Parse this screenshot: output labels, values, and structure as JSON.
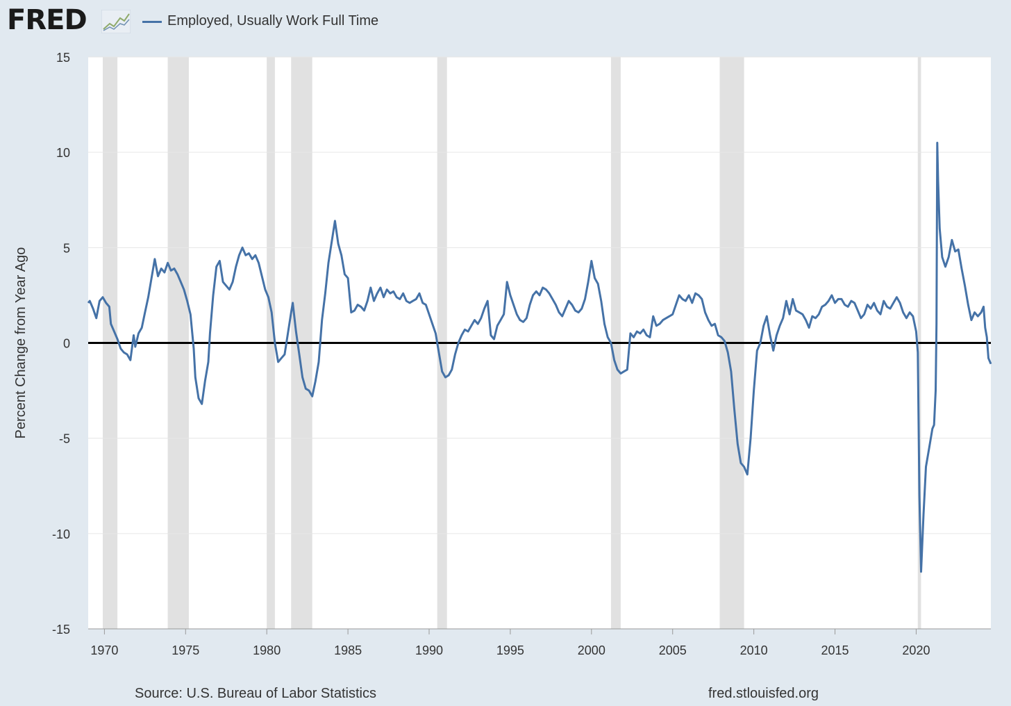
{
  "header": {
    "logo_text": "FRED",
    "legend_label": "Employed, Usually Work Full Time",
    "series_color": "#4572a7"
  },
  "footer": {
    "source": "Source: U.S. Bureau of Labor Statistics",
    "site": "fred.stlouisfed.org"
  },
  "chart_data": {
    "type": "line",
    "title": "",
    "ylabel": "Percent Change from Year Ago",
    "xlabel": "",
    "xlim": [
      1969.0,
      2024.6
    ],
    "ylim": [
      -15,
      15
    ],
    "x_ticks": [
      1970,
      1975,
      1980,
      1985,
      1990,
      1995,
      2000,
      2005,
      2010,
      2015,
      2020
    ],
    "y_ticks": [
      15,
      10,
      5,
      0,
      -5,
      -10,
      -15
    ],
    "grid": true,
    "zero_line": true,
    "recessions": [
      [
        1969.9,
        1970.8
      ],
      [
        1973.9,
        1975.2
      ],
      [
        1980.0,
        1980.5
      ],
      [
        1981.5,
        1982.8
      ],
      [
        1990.5,
        1991.1
      ],
      [
        2001.2,
        2001.8
      ],
      [
        2007.9,
        2009.4
      ],
      [
        2020.1,
        2020.3
      ]
    ],
    "series": [
      {
        "name": "Employed, Usually Work Full Time",
        "color": "#4572a7",
        "points": [
          [
            1969.0,
            2.1
          ],
          [
            1969.1,
            2.2
          ],
          [
            1969.3,
            1.8
          ],
          [
            1969.5,
            1.3
          ],
          [
            1969.7,
            2.2
          ],
          [
            1969.9,
            2.4
          ],
          [
            1970.1,
            2.1
          ],
          [
            1970.3,
            1.9
          ],
          [
            1970.4,
            1.0
          ],
          [
            1970.6,
            0.6
          ],
          [
            1970.8,
            0.2
          ],
          [
            1971.0,
            -0.3
          ],
          [
            1971.2,
            -0.5
          ],
          [
            1971.4,
            -0.6
          ],
          [
            1971.6,
            -0.9
          ],
          [
            1971.8,
            0.4
          ],
          [
            1971.9,
            -0.2
          ],
          [
            1972.1,
            0.5
          ],
          [
            1972.3,
            0.8
          ],
          [
            1972.5,
            1.6
          ],
          [
            1972.7,
            2.4
          ],
          [
            1972.9,
            3.4
          ],
          [
            1973.1,
            4.4
          ],
          [
            1973.3,
            3.5
          ],
          [
            1973.5,
            3.9
          ],
          [
            1973.7,
            3.7
          ],
          [
            1973.9,
            4.2
          ],
          [
            1974.1,
            3.8
          ],
          [
            1974.3,
            3.9
          ],
          [
            1974.5,
            3.6
          ],
          [
            1974.7,
            3.2
          ],
          [
            1974.9,
            2.8
          ],
          [
            1975.1,
            2.2
          ],
          [
            1975.3,
            1.5
          ],
          [
            1975.5,
            -0.3
          ],
          [
            1975.6,
            -1.8
          ],
          [
            1975.8,
            -2.9
          ],
          [
            1976.0,
            -3.2
          ],
          [
            1976.2,
            -2.0
          ],
          [
            1976.4,
            -1.0
          ],
          [
            1976.5,
            0.5
          ],
          [
            1976.7,
            2.5
          ],
          [
            1976.9,
            4.0
          ],
          [
            1977.1,
            4.3
          ],
          [
            1977.3,
            3.2
          ],
          [
            1977.5,
            3.0
          ],
          [
            1977.7,
            2.8
          ],
          [
            1977.9,
            3.2
          ],
          [
            1978.1,
            4.0
          ],
          [
            1978.3,
            4.6
          ],
          [
            1978.5,
            5.0
          ],
          [
            1978.7,
            4.6
          ],
          [
            1978.9,
            4.7
          ],
          [
            1979.1,
            4.4
          ],
          [
            1979.3,
            4.6
          ],
          [
            1979.5,
            4.2
          ],
          [
            1979.7,
            3.5
          ],
          [
            1979.9,
            2.8
          ],
          [
            1980.1,
            2.4
          ],
          [
            1980.3,
            1.6
          ],
          [
            1980.5,
            0.0
          ],
          [
            1980.7,
            -1.0
          ],
          [
            1980.9,
            -0.8
          ],
          [
            1981.1,
            -0.6
          ],
          [
            1981.3,
            0.5
          ],
          [
            1981.5,
            1.6
          ],
          [
            1981.6,
            2.1
          ],
          [
            1981.8,
            0.6
          ],
          [
            1982.0,
            -0.6
          ],
          [
            1982.2,
            -1.8
          ],
          [
            1982.4,
            -2.4
          ],
          [
            1982.6,
            -2.5
          ],
          [
            1982.8,
            -2.8
          ],
          [
            1983.0,
            -2.0
          ],
          [
            1983.2,
            -1.0
          ],
          [
            1983.4,
            1.2
          ],
          [
            1983.6,
            2.6
          ],
          [
            1983.8,
            4.2
          ],
          [
            1984.0,
            5.3
          ],
          [
            1984.2,
            6.4
          ],
          [
            1984.4,
            5.2
          ],
          [
            1984.6,
            4.6
          ],
          [
            1984.8,
            3.6
          ],
          [
            1985.0,
            3.4
          ],
          [
            1985.2,
            1.6
          ],
          [
            1985.4,
            1.7
          ],
          [
            1985.6,
            2.0
          ],
          [
            1985.8,
            1.9
          ],
          [
            1986.0,
            1.7
          ],
          [
            1986.2,
            2.2
          ],
          [
            1986.4,
            2.9
          ],
          [
            1986.6,
            2.2
          ],
          [
            1986.8,
            2.6
          ],
          [
            1987.0,
            2.9
          ],
          [
            1987.2,
            2.4
          ],
          [
            1987.4,
            2.8
          ],
          [
            1987.6,
            2.6
          ],
          [
            1987.8,
            2.7
          ],
          [
            1988.0,
            2.4
          ],
          [
            1988.2,
            2.3
          ],
          [
            1988.4,
            2.6
          ],
          [
            1988.6,
            2.2
          ],
          [
            1988.8,
            2.1
          ],
          [
            1989.0,
            2.2
          ],
          [
            1989.2,
            2.3
          ],
          [
            1989.4,
            2.6
          ],
          [
            1989.6,
            2.1
          ],
          [
            1989.8,
            2.0
          ],
          [
            1990.0,
            1.5
          ],
          [
            1990.2,
            1.0
          ],
          [
            1990.4,
            0.5
          ],
          [
            1990.6,
            -0.5
          ],
          [
            1990.8,
            -1.5
          ],
          [
            1991.0,
            -1.8
          ],
          [
            1991.2,
            -1.7
          ],
          [
            1991.4,
            -1.4
          ],
          [
            1991.6,
            -0.6
          ],
          [
            1991.8,
            0.0
          ],
          [
            1992.0,
            0.4
          ],
          [
            1992.2,
            0.7
          ],
          [
            1992.4,
            0.6
          ],
          [
            1992.6,
            0.9
          ],
          [
            1992.8,
            1.2
          ],
          [
            1993.0,
            1.0
          ],
          [
            1993.2,
            1.3
          ],
          [
            1993.4,
            1.8
          ],
          [
            1993.6,
            2.2
          ],
          [
            1993.8,
            0.4
          ],
          [
            1994.0,
            0.2
          ],
          [
            1994.2,
            0.9
          ],
          [
            1994.4,
            1.2
          ],
          [
            1994.6,
            1.5
          ],
          [
            1994.8,
            3.2
          ],
          [
            1995.0,
            2.5
          ],
          [
            1995.2,
            2.0
          ],
          [
            1995.4,
            1.5
          ],
          [
            1995.6,
            1.2
          ],
          [
            1995.8,
            1.1
          ],
          [
            1996.0,
            1.3
          ],
          [
            1996.2,
            2.0
          ],
          [
            1996.4,
            2.5
          ],
          [
            1996.6,
            2.7
          ],
          [
            1996.8,
            2.5
          ],
          [
            1997.0,
            2.9
          ],
          [
            1997.2,
            2.8
          ],
          [
            1997.4,
            2.6
          ],
          [
            1997.6,
            2.3
          ],
          [
            1997.8,
            2.0
          ],
          [
            1998.0,
            1.6
          ],
          [
            1998.2,
            1.4
          ],
          [
            1998.4,
            1.8
          ],
          [
            1998.6,
            2.2
          ],
          [
            1998.8,
            2.0
          ],
          [
            1999.0,
            1.7
          ],
          [
            1999.2,
            1.6
          ],
          [
            1999.4,
            1.8
          ],
          [
            1999.6,
            2.3
          ],
          [
            1999.8,
            3.2
          ],
          [
            2000.0,
            4.3
          ],
          [
            2000.2,
            3.4
          ],
          [
            2000.4,
            3.1
          ],
          [
            2000.6,
            2.2
          ],
          [
            2000.8,
            1.0
          ],
          [
            2001.0,
            0.3
          ],
          [
            2001.2,
            0.0
          ],
          [
            2001.4,
            -0.9
          ],
          [
            2001.6,
            -1.4
          ],
          [
            2001.8,
            -1.6
          ],
          [
            2002.0,
            -1.5
          ],
          [
            2002.2,
            -1.4
          ],
          [
            2002.4,
            0.5
          ],
          [
            2002.6,
            0.3
          ],
          [
            2002.8,
            0.6
          ],
          [
            2003.0,
            0.5
          ],
          [
            2003.2,
            0.7
          ],
          [
            2003.4,
            0.4
          ],
          [
            2003.6,
            0.3
          ],
          [
            2003.8,
            1.4
          ],
          [
            2004.0,
            0.9
          ],
          [
            2004.2,
            1.0
          ],
          [
            2004.4,
            1.2
          ],
          [
            2004.6,
            1.3
          ],
          [
            2004.8,
            1.4
          ],
          [
            2005.0,
            1.5
          ],
          [
            2005.2,
            2.0
          ],
          [
            2005.4,
            2.5
          ],
          [
            2005.6,
            2.3
          ],
          [
            2005.8,
            2.2
          ],
          [
            2006.0,
            2.5
          ],
          [
            2006.2,
            2.1
          ],
          [
            2006.4,
            2.6
          ],
          [
            2006.6,
            2.5
          ],
          [
            2006.8,
            2.3
          ],
          [
            2007.0,
            1.6
          ],
          [
            2007.2,
            1.2
          ],
          [
            2007.4,
            0.9
          ],
          [
            2007.6,
            1.0
          ],
          [
            2007.8,
            0.4
          ],
          [
            2008.0,
            0.3
          ],
          [
            2008.2,
            0.1
          ],
          [
            2008.4,
            -0.5
          ],
          [
            2008.6,
            -1.5
          ],
          [
            2008.8,
            -3.5
          ],
          [
            2009.0,
            -5.3
          ],
          [
            2009.2,
            -6.3
          ],
          [
            2009.4,
            -6.5
          ],
          [
            2009.6,
            -6.9
          ],
          [
            2009.8,
            -5.0
          ],
          [
            2010.0,
            -2.5
          ],
          [
            2010.2,
            -0.4
          ],
          [
            2010.4,
            0.0
          ],
          [
            2010.6,
            0.9
          ],
          [
            2010.8,
            1.4
          ],
          [
            2011.0,
            0.4
          ],
          [
            2011.2,
            -0.4
          ],
          [
            2011.4,
            0.4
          ],
          [
            2011.6,
            0.9
          ],
          [
            2011.8,
            1.3
          ],
          [
            2012.0,
            2.2
          ],
          [
            2012.2,
            1.5
          ],
          [
            2012.4,
            2.3
          ],
          [
            2012.6,
            1.7
          ],
          [
            2012.8,
            1.6
          ],
          [
            2013.0,
            1.5
          ],
          [
            2013.2,
            1.2
          ],
          [
            2013.4,
            0.8
          ],
          [
            2013.6,
            1.4
          ],
          [
            2013.8,
            1.3
          ],
          [
            2014.0,
            1.5
          ],
          [
            2014.2,
            1.9
          ],
          [
            2014.4,
            2.0
          ],
          [
            2014.6,
            2.2
          ],
          [
            2014.8,
            2.5
          ],
          [
            2015.0,
            2.1
          ],
          [
            2015.2,
            2.3
          ],
          [
            2015.4,
            2.3
          ],
          [
            2015.6,
            2.0
          ],
          [
            2015.8,
            1.9
          ],
          [
            2016.0,
            2.2
          ],
          [
            2016.2,
            2.1
          ],
          [
            2016.4,
            1.7
          ],
          [
            2016.6,
            1.3
          ],
          [
            2016.8,
            1.5
          ],
          [
            2017.0,
            2.0
          ],
          [
            2017.2,
            1.8
          ],
          [
            2017.4,
            2.1
          ],
          [
            2017.6,
            1.7
          ],
          [
            2017.8,
            1.5
          ],
          [
            2018.0,
            2.2
          ],
          [
            2018.2,
            1.9
          ],
          [
            2018.4,
            1.8
          ],
          [
            2018.6,
            2.1
          ],
          [
            2018.8,
            2.4
          ],
          [
            2019.0,
            2.1
          ],
          [
            2019.2,
            1.6
          ],
          [
            2019.4,
            1.3
          ],
          [
            2019.6,
            1.6
          ],
          [
            2019.8,
            1.4
          ],
          [
            2020.0,
            0.6
          ],
          [
            2020.1,
            -0.5
          ],
          [
            2020.2,
            -8.0
          ],
          [
            2020.3,
            -12.0
          ],
          [
            2020.45,
            -9.0
          ],
          [
            2020.6,
            -6.5
          ],
          [
            2020.8,
            -5.5
          ],
          [
            2021.0,
            -4.5
          ],
          [
            2021.1,
            -4.3
          ],
          [
            2021.2,
            -2.5
          ],
          [
            2021.25,
            1.0
          ],
          [
            2021.3,
            10.5
          ],
          [
            2021.35,
            8.5
          ],
          [
            2021.45,
            6.0
          ],
          [
            2021.6,
            4.5
          ],
          [
            2021.8,
            4.0
          ],
          [
            2022.0,
            4.5
          ],
          [
            2022.2,
            5.4
          ],
          [
            2022.4,
            4.8
          ],
          [
            2022.6,
            4.9
          ],
          [
            2022.8,
            3.9
          ],
          [
            2023.0,
            3.0
          ],
          [
            2023.2,
            2.0
          ],
          [
            2023.4,
            1.2
          ],
          [
            2023.6,
            1.6
          ],
          [
            2023.8,
            1.4
          ],
          [
            2024.0,
            1.6
          ],
          [
            2024.15,
            1.9
          ],
          [
            2024.25,
            0.8
          ],
          [
            2024.35,
            0.3
          ],
          [
            2024.45,
            -0.8
          ],
          [
            2024.6,
            -1.1
          ]
        ]
      }
    ]
  }
}
